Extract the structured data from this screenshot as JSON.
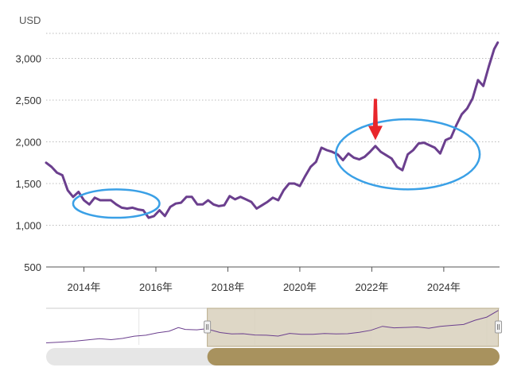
{
  "chart_data": {
    "type": "line",
    "title": "",
    "unit_label": "USD",
    "xlabel": "",
    "ylabel": "",
    "ylim": [
      500,
      3300
    ],
    "y_ticks": [
      {
        "value": 500,
        "label": "500"
      },
      {
        "value": 1000,
        "label": "1,000"
      },
      {
        "value": 1500,
        "label": "1,500"
      },
      {
        "value": 2000,
        "label": "2,000"
      },
      {
        "value": 2500,
        "label": "2,500"
      },
      {
        "value": 3000,
        "label": "3,000"
      }
    ],
    "x_ticks": [
      {
        "value": 2014,
        "label": "2014年"
      },
      {
        "value": 2016,
        "label": "2016年"
      },
      {
        "value": 2018,
        "label": "2018年"
      },
      {
        "value": 2020,
        "label": "2020年"
      },
      {
        "value": 2022,
        "label": "2022年"
      },
      {
        "value": 2024,
        "label": "2024年"
      }
    ],
    "grid": "horizontal dotted",
    "series": [
      {
        "name": "",
        "color": "#6b3f8e",
        "points": [
          [
            2012.95,
            1750
          ],
          [
            2013.1,
            1700
          ],
          [
            2013.25,
            1630
          ],
          [
            2013.4,
            1600
          ],
          [
            2013.55,
            1420
          ],
          [
            2013.7,
            1340
          ],
          [
            2013.85,
            1400
          ],
          [
            2014.0,
            1300
          ],
          [
            2014.15,
            1250
          ],
          [
            2014.3,
            1330
          ],
          [
            2014.45,
            1300
          ],
          [
            2014.6,
            1300
          ],
          [
            2014.75,
            1300
          ],
          [
            2014.9,
            1250
          ],
          [
            2015.05,
            1210
          ],
          [
            2015.2,
            1200
          ],
          [
            2015.35,
            1210
          ],
          [
            2015.5,
            1190
          ],
          [
            2015.65,
            1180
          ],
          [
            2015.8,
            1090
          ],
          [
            2015.95,
            1110
          ],
          [
            2016.1,
            1180
          ],
          [
            2016.25,
            1110
          ],
          [
            2016.4,
            1220
          ],
          [
            2016.55,
            1260
          ],
          [
            2016.7,
            1270
          ],
          [
            2016.85,
            1340
          ],
          [
            2017.0,
            1340
          ],
          [
            2017.15,
            1250
          ],
          [
            2017.3,
            1250
          ],
          [
            2017.45,
            1300
          ],
          [
            2017.6,
            1250
          ],
          [
            2017.75,
            1230
          ],
          [
            2017.9,
            1240
          ],
          [
            2018.05,
            1350
          ],
          [
            2018.2,
            1310
          ],
          [
            2018.35,
            1340
          ],
          [
            2018.5,
            1310
          ],
          [
            2018.65,
            1280
          ],
          [
            2018.8,
            1200
          ],
          [
            2018.95,
            1240
          ],
          [
            2019.1,
            1280
          ],
          [
            2019.25,
            1330
          ],
          [
            2019.4,
            1300
          ],
          [
            2019.55,
            1420
          ],
          [
            2019.7,
            1500
          ],
          [
            2019.85,
            1500
          ],
          [
            2020.0,
            1470
          ],
          [
            2020.15,
            1590
          ],
          [
            2020.3,
            1700
          ],
          [
            2020.45,
            1760
          ],
          [
            2020.6,
            1930
          ],
          [
            2020.75,
            1900
          ],
          [
            2020.9,
            1880
          ],
          [
            2021.05,
            1850
          ],
          [
            2021.2,
            1780
          ],
          [
            2021.35,
            1860
          ],
          [
            2021.5,
            1810
          ],
          [
            2021.65,
            1790
          ],
          [
            2021.8,
            1820
          ],
          [
            2021.95,
            1880
          ],
          [
            2022.1,
            1950
          ],
          [
            2022.25,
            1880
          ],
          [
            2022.4,
            1840
          ],
          [
            2022.55,
            1800
          ],
          [
            2022.7,
            1700
          ],
          [
            2022.85,
            1660
          ],
          [
            2023.0,
            1850
          ],
          [
            2023.15,
            1900
          ],
          [
            2023.3,
            1980
          ],
          [
            2023.45,
            1990
          ],
          [
            2023.6,
            1960
          ],
          [
            2023.75,
            1930
          ],
          [
            2023.9,
            1860
          ],
          [
            2024.05,
            2020
          ],
          [
            2024.2,
            2050
          ],
          [
            2024.35,
            2200
          ],
          [
            2024.5,
            2330
          ],
          [
            2024.65,
            2400
          ],
          [
            2024.8,
            2520
          ],
          [
            2024.95,
            2740
          ],
          [
            2025.1,
            2670
          ],
          [
            2025.25,
            2900
          ],
          [
            2025.4,
            3110
          ],
          [
            2025.5,
            3190
          ]
        ]
      }
    ],
    "annotations": [
      {
        "type": "ellipse",
        "color": "#3aa0e6",
        "center": [
          2014.9,
          1260
        ],
        "radius_x_years": 1.2,
        "radius_y_value": 170
      },
      {
        "type": "ellipse",
        "color": "#3aa0e6",
        "center": [
          2023.0,
          1850
        ],
        "radius_x_years": 2.0,
        "radius_y_value": 420
      },
      {
        "type": "arrow",
        "color": "#e8262b",
        "target": [
          2022.1,
          2020
        ]
      }
    ],
    "navigator": {
      "series": [
        [
          2006.0,
          560
        ],
        [
          2006.6,
          620
        ],
        [
          2007.2,
          690
        ],
        [
          2007.8,
          800
        ],
        [
          2008.3,
          900
        ],
        [
          2008.8,
          820
        ],
        [
          2009.3,
          920
        ],
        [
          2009.8,
          1100
        ],
        [
          2010.3,
          1180
        ],
        [
          2010.8,
          1370
        ],
        [
          2011.3,
          1500
        ],
        [
          2011.7,
          1800
        ],
        [
          2012.0,
          1650
        ],
        [
          2012.5,
          1620
        ],
        [
          2012.9,
          1700
        ],
        [
          2013.5,
          1400
        ],
        [
          2014.0,
          1290
        ],
        [
          2014.5,
          1300
        ],
        [
          2015.0,
          1200
        ],
        [
          2015.5,
          1180
        ],
        [
          2016.0,
          1110
        ],
        [
          2016.5,
          1330
        ],
        [
          2017.0,
          1250
        ],
        [
          2017.5,
          1260
        ],
        [
          2018.0,
          1320
        ],
        [
          2018.5,
          1280
        ],
        [
          2019.0,
          1300
        ],
        [
          2019.5,
          1420
        ],
        [
          2020.0,
          1580
        ],
        [
          2020.5,
          1900
        ],
        [
          2021.0,
          1780
        ],
        [
          2021.5,
          1810
        ],
        [
          2022.0,
          1850
        ],
        [
          2022.5,
          1750
        ],
        [
          2023.0,
          1900
        ],
        [
          2023.5,
          1980
        ],
        [
          2024.0,
          2050
        ],
        [
          2024.5,
          2400
        ],
        [
          2025.0,
          2650
        ],
        [
          2025.5,
          3190
        ]
      ],
      "selected_range": [
        2012.95,
        2025.5
      ]
    }
  }
}
